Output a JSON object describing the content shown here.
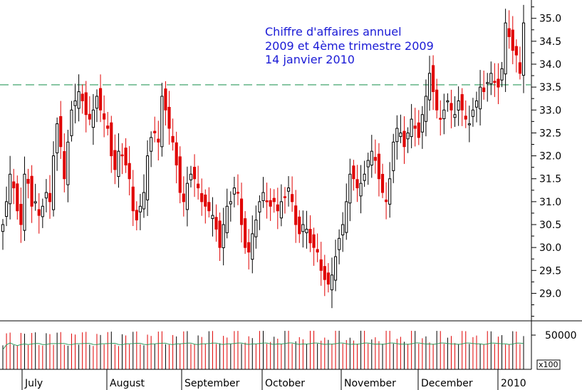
{
  "chart_data": [
    {
      "type": "candlestick",
      "annotation": [
        "Chiffre d'affaires annuel",
        "2009 et 4ème trimestre 2009",
        "14 janvier 2010"
      ],
      "ylim": [
        28.4,
        35.4
      ],
      "yticks": [
        "29.0",
        "29.5",
        "30.0",
        "30.5",
        "31.0",
        "31.5",
        "32.0",
        "32.5",
        "33.0",
        "33.5",
        "34.0",
        "34.5",
        "35.0"
      ],
      "xticks": [
        "July",
        "August",
        "September",
        "October",
        "November",
        "December",
        "2010"
      ],
      "reference_level": 33.55,
      "colors": {
        "up": "#ffffff",
        "down": "#e00000",
        "outline": "#000000",
        "reference": "#2e9a5e",
        "annotation": "#1a1ad6"
      },
      "close_series": [
        30.5,
        31.0,
        31.6,
        31.3,
        30.8,
        30.5,
        31.6,
        31.4,
        30.9,
        31.0,
        30.7,
        30.9,
        31.2,
        31.0,
        32.0,
        32.7,
        32.2,
        31.5,
        32.3,
        33.0,
        33.2,
        33.4,
        33.2,
        32.9,
        32.8,
        33.0,
        33.3,
        33.0,
        32.8,
        32.6,
        32.0,
        31.7,
        32.1,
        32.0,
        31.8,
        31.5,
        30.8,
        30.6,
        30.9,
        31.2,
        32.0,
        32.4,
        32.5,
        32.3,
        33.3,
        33.0,
        32.6,
        32.3,
        31.8,
        31.2,
        31.0,
        31.4,
        31.6,
        31.5,
        31.3,
        31.0,
        30.9,
        30.8,
        30.7,
        30.4,
        30.0,
        30.5,
        30.9,
        31.0,
        31.3,
        31.2,
        30.5,
        30.0,
        29.9,
        30.3,
        30.6,
        31.0,
        31.2,
        31.0,
        30.9,
        31.0,
        30.8,
        31.0,
        31.1,
        31.3,
        31.0,
        30.5,
        30.3,
        30.5,
        30.4,
        30.1,
        30.0,
        29.9,
        29.5,
        29.3,
        29.2,
        29.4,
        29.8,
        30.2,
        30.5,
        31.0,
        31.6,
        31.5,
        31.3,
        31.4,
        31.6,
        31.9,
        32.1,
        31.9,
        31.5,
        31.2,
        31.0,
        31.5,
        32.3,
        32.6,
        32.5,
        32.2,
        32.5,
        32.8,
        32.6,
        32.4,
        32.9,
        33.3,
        33.8,
        33.4,
        33.0,
        32.8,
        33.0,
        33.2,
        33.0,
        32.9,
        33.2,
        33.0,
        32.8,
        32.7,
        33.0,
        33.2,
        33.5,
        33.4,
        33.6,
        33.8,
        33.6,
        33.5,
        33.9,
        34.9,
        34.6,
        34.3,
        34.2,
        33.8,
        34.9
      ],
      "volume_label": "50000",
      "volume_unit": "x100",
      "volume_max": 60000
    }
  ]
}
